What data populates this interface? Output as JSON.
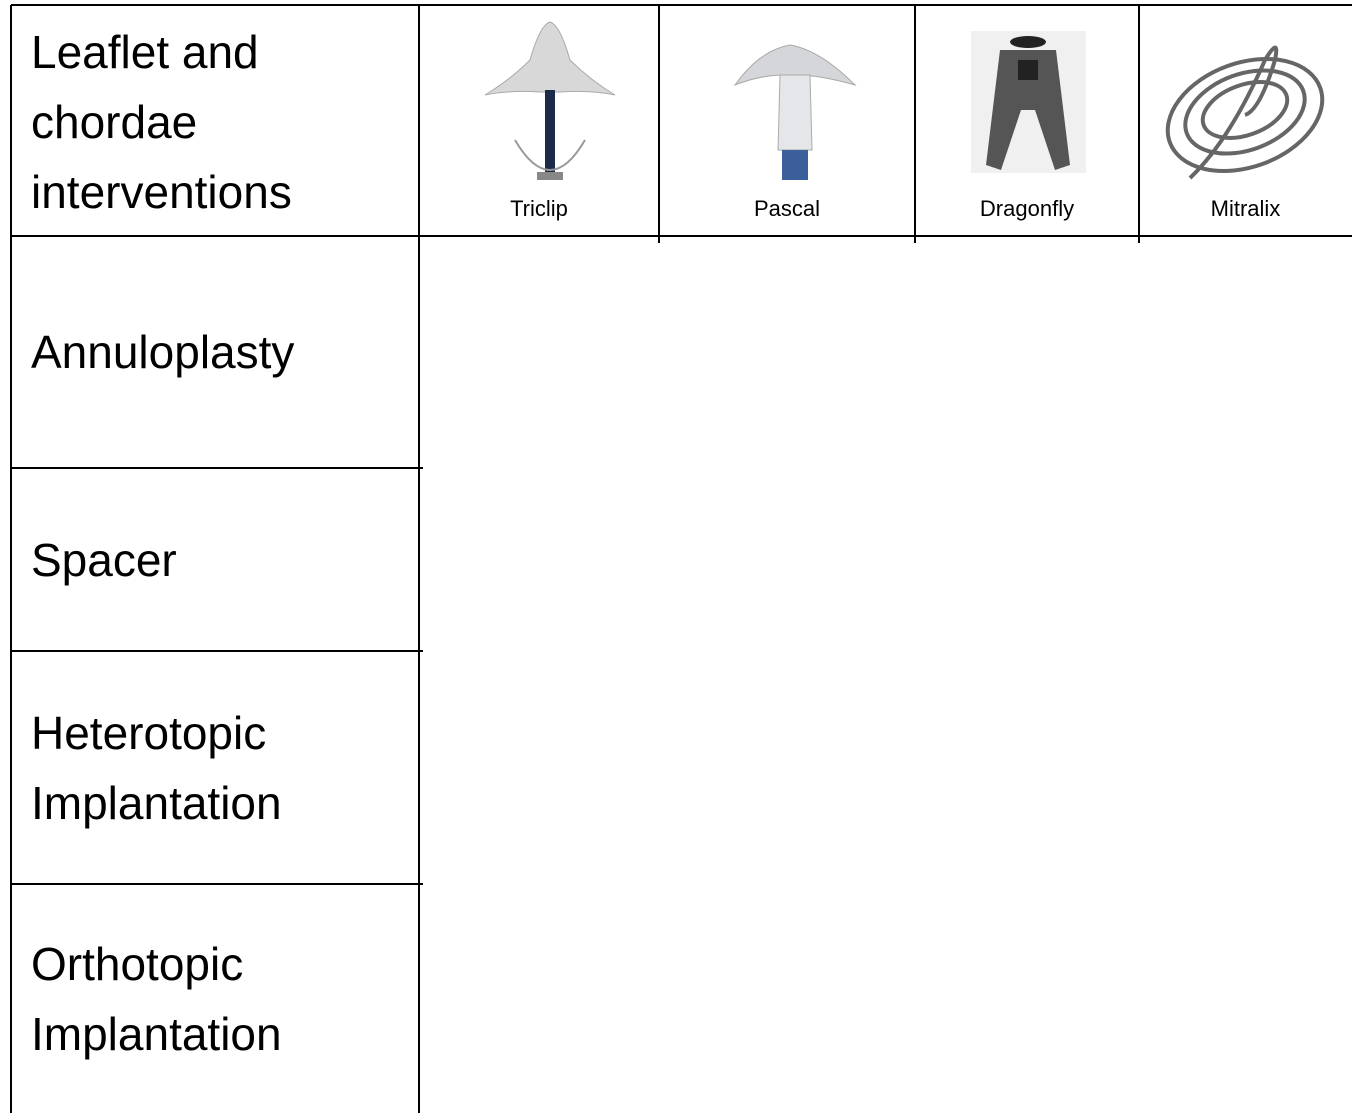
{
  "rows": [
    {
      "label": "Leaflet and chordae interventions",
      "devices": [
        "Triclip",
        "Pascal",
        "Dragonfly",
        "Mitralix"
      ]
    },
    {
      "label": "Annuloplasty"
    },
    {
      "label": "Spacer"
    },
    {
      "label": "Heterotopic Implantation"
    },
    {
      "label": "Orthotopic Implantation"
    }
  ]
}
